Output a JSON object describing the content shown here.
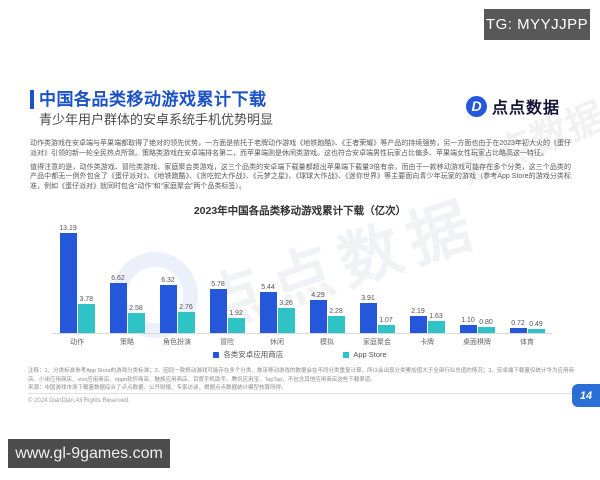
{
  "overlay": {
    "tg_badge": "TG: MYYJJPP",
    "site_badge": "www.gl-9games.com"
  },
  "header": {
    "title": "中国各品类移动游戏累计下载",
    "subtitle": "青少年用户群体的安卓系统手机优势明显",
    "logo_text": "点点数据",
    "logo_mark": "D",
    "accent_color": "#1b52c8"
  },
  "body": {
    "paragraph1": "动作类游戏在安卓端与苹果端都取得了绝对的领先优势，一方面是依托于老牌动作游戏《地铁跑酷》、《王者荣耀》等产品的持续强势，另一方面也由于在2023年初大火的《蛋仔派对》引领的新一轮全民热点所致。策略类游戏在安卓端排名第二，而苹果端则是休闲类游戏。这也符合安卓端男性玩家占比偏多、苹果端女性玩家占比略高这一特征。",
    "paragraph2": "值得注意的是，动作类游戏、冒险类游戏、家庭聚会类游戏，这三个品类的安卓端下载量都超出苹果端下载量3倍有余，而由于一款移动游戏可能存在多个分类，这三个品类的产品中都无一例外包含了《蛋仔派对》、《地铁跑酷》、《贪吃蛇大作战》、《元梦之星》、《球球大作战》、《迷你世界》等主要面向青少年玩家的游戏（参考App Store的游戏分类标准，例如《蛋仔派对》就同时包含“动作”和“家庭聚会”两个品类标签）。"
  },
  "chart_data": {
    "type": "bar",
    "title": "2023年中国各品类移动游戏累计下载（亿次）",
    "categories": [
      "动作",
      "策略",
      "角色扮演",
      "冒险",
      "休闲",
      "模拟",
      "家庭聚会",
      "卡牌",
      "桌面棋牌",
      "体育"
    ],
    "series": [
      {
        "name": "各类安卓应用商店",
        "color": "#2457d9",
        "values": [
          13.19,
          6.62,
          6.32,
          5.78,
          5.44,
          4.29,
          3.91,
          2.19,
          1.1,
          0.72
        ],
        "labels": [
          "13.19",
          "6.62",
          "6.32",
          "5.78",
          "5.44",
          "4.29",
          "3.91",
          "2.19",
          "1.10",
          "0.72"
        ]
      },
      {
        "name": "App Store",
        "color": "#2fc3c5",
        "values": [
          3.78,
          2.58,
          2.76,
          1.92,
          3.26,
          2.28,
          1.07,
          1.63,
          0.8,
          0.49
        ],
        "labels": [
          "3.78",
          "2.58",
          "2.76",
          "1.92",
          "3.26",
          "2.28",
          "1.07",
          "1.63",
          "0.80",
          "0.49"
        ]
      }
    ],
    "xlabel": "",
    "ylabel": "",
    "ylim": [
      0,
      13.19
    ],
    "grid": false,
    "legend_position": "bottom",
    "value_labels": true
  },
  "footnotes": {
    "note": "注释：1、分类标准参考App Store的游戏分类标准；2、因同一款移动游戏可能存在多个分类，故该移动游戏的数据会在不同分类重复计算，所以会出现分类累加值大于全部行业总值的情况；3、安卓端下载量仅统计华为应用商店、小米应用商店、vivo应用商店、oppo软件商店、魅族应用商店、百度手机助手、腾讯应用宝、TapTap，不包含其他应用商店这些下载渠道。",
    "source": "来源：中国游戏市场下载量数据综合了点点数据、公开财报、专家访谈，根据点点数据统计模型核算所得。"
  },
  "footer": {
    "copyright": "© 2024 DianDian.All Rights Reserved.",
    "page_number": "14"
  },
  "watermark": "点点数据"
}
